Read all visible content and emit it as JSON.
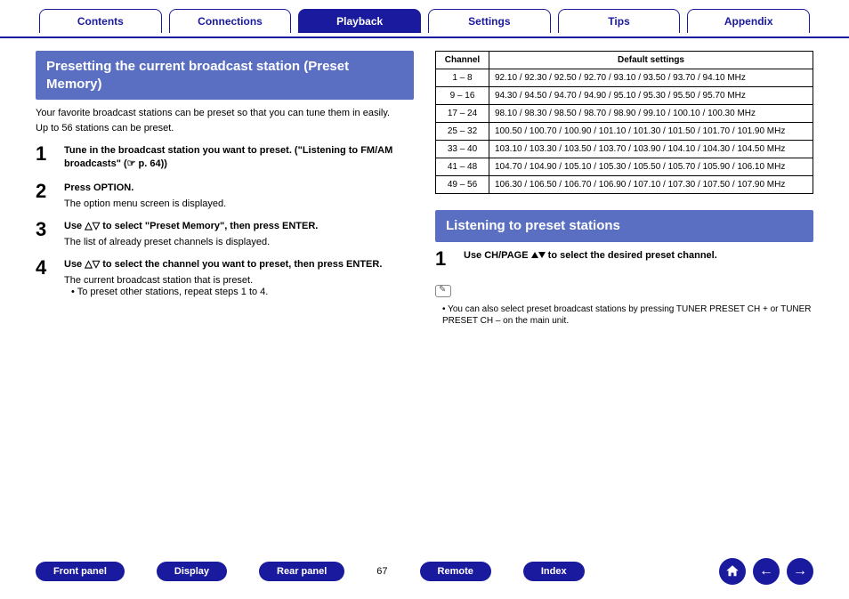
{
  "tabs": {
    "contents": "Contents",
    "connections": "Connections",
    "playback": "Playback",
    "settings": "Settings",
    "tips": "Tips",
    "appendix": "Appendix"
  },
  "left": {
    "header": "Presetting the current broadcast station (Preset Memory)",
    "intro1": "Your favorite broadcast stations can be preset so that you can tune them in easily.",
    "intro2": "Up to 56 stations can be preset.",
    "steps": [
      {
        "num": "1",
        "title": "Tune in the broadcast station you want to preset. (\"Listening to FM/AM broadcasts\" (☞ p. 64))",
        "desc": ""
      },
      {
        "num": "2",
        "title": "Press OPTION.",
        "desc": "The option menu screen is displayed."
      },
      {
        "num": "3",
        "title": "Use △▽ to select \"Preset Memory\", then press ENTER.",
        "desc": "The list of already preset channels is displayed."
      },
      {
        "num": "4",
        "title": "Use △▽ to select the channel you want to preset, then press ENTER.",
        "desc": "The current broadcast station that is preset.",
        "bullet": "To preset other stations, repeat steps 1 to 4."
      }
    ]
  },
  "table": {
    "col1": "Channel",
    "col2": "Default settings",
    "rows": [
      {
        "ch": "1 – 8",
        "val": "92.10 / 92.30 / 92.50 / 92.70 / 93.10 / 93.50 / 93.70 / 94.10 MHz"
      },
      {
        "ch": "9 – 16",
        "val": "94.30 / 94.50 / 94.70 / 94.90 / 95.10 / 95.30 / 95.50 / 95.70 MHz"
      },
      {
        "ch": "17 – 24",
        "val": "98.10 / 98.30 / 98.50 / 98.70 / 98.90 / 99.10 / 100.10 / 100.30 MHz"
      },
      {
        "ch": "25 – 32",
        "val": "100.50 / 100.70 / 100.90 / 101.10 / 101.30 / 101.50 / 101.70 / 101.90 MHz"
      },
      {
        "ch": "33 – 40",
        "val": "103.10 / 103.30 / 103.50 / 103.70 / 103.90 / 104.10 / 104.30 / 104.50 MHz"
      },
      {
        "ch": "41 – 48",
        "val": "104.70 / 104.90 / 105.10 / 105.30 / 105.50 / 105.70 / 105.90 / 106.10 MHz"
      },
      {
        "ch": "49 – 56",
        "val": "106.30 / 106.50 / 106.70 / 106.90 / 107.10 / 107.30 / 107.50 / 107.90 MHz"
      }
    ]
  },
  "right": {
    "header": "Listening to preset stations",
    "step1_num": "1",
    "step1_title": "Use CH/PAGE ▲▼ to select the desired preset channel.",
    "note": "You can also select preset broadcast stations by pressing TUNER PRESET CH + or TUNER PRESET CH – on the main unit."
  },
  "footer": {
    "front_panel": "Front panel",
    "display": "Display",
    "rear_panel": "Rear panel",
    "page": "67",
    "remote": "Remote",
    "index": "Index"
  },
  "colors": {
    "brand_blue": "#1a1a9e",
    "header_blue": "#5b6fc2"
  }
}
